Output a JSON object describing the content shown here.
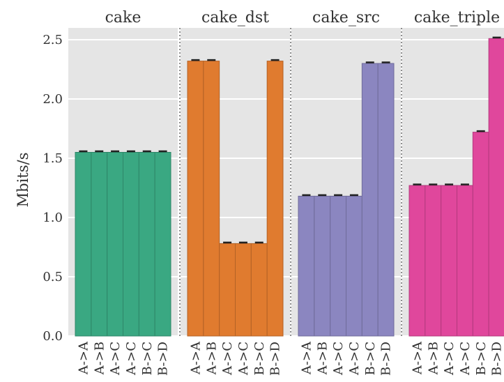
{
  "chart_data": {
    "type": "bar",
    "ylabel": "Mbits/s",
    "xlabel": "",
    "ylim": [
      0,
      2.6
    ],
    "yticks": [
      "0.0",
      "0.5",
      "1.0",
      "1.5",
      "2.0",
      "2.5"
    ],
    "grid": true,
    "categories": [
      "A->A",
      "A->B",
      "A->C",
      "A->C",
      "B->C",
      "B->D"
    ],
    "panels": [
      {
        "title": "cake",
        "color": "#3aa882",
        "values": [
          1.55,
          1.55,
          1.55,
          1.55,
          1.55,
          1.55
        ]
      },
      {
        "title": "cake_dst",
        "color": "#e07b2f",
        "values": [
          2.32,
          2.32,
          0.78,
          0.78,
          0.78,
          2.32
        ]
      },
      {
        "title": "cake_src",
        "color": "#8b86c0",
        "values": [
          1.18,
          1.18,
          1.18,
          1.18,
          2.3,
          2.3
        ]
      },
      {
        "title": "cake_triple",
        "color": "#e0479c",
        "values": [
          1.27,
          1.27,
          1.27,
          1.27,
          1.72,
          2.51
        ]
      }
    ]
  }
}
